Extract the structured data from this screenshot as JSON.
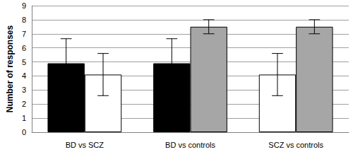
{
  "chart_data": {
    "type": "bar",
    "y_label": "Number of responses",
    "categories": [
      "BD vs SCZ",
      "BD vs controls",
      "SCZ vs controls"
    ],
    "series": [
      {
        "colors": [
          "#000000",
          "#000000",
          "#ffffff"
        ],
        "values": [
          4.9,
          4.9,
          4.1
        ],
        "errors": [
          1.75,
          1.75,
          1.5
        ]
      },
      {
        "colors": [
          "#ffffff",
          "#a6a6a6",
          "#a6a6a6"
        ],
        "values": [
          4.1,
          7.5,
          7.5
        ],
        "errors": [
          1.5,
          0.5,
          0.5
        ]
      }
    ],
    "ylim": [
      0,
      9
    ],
    "yticks": [
      0,
      1,
      2,
      3,
      4,
      5,
      6,
      7,
      8,
      9
    ],
    "grid": true
  }
}
